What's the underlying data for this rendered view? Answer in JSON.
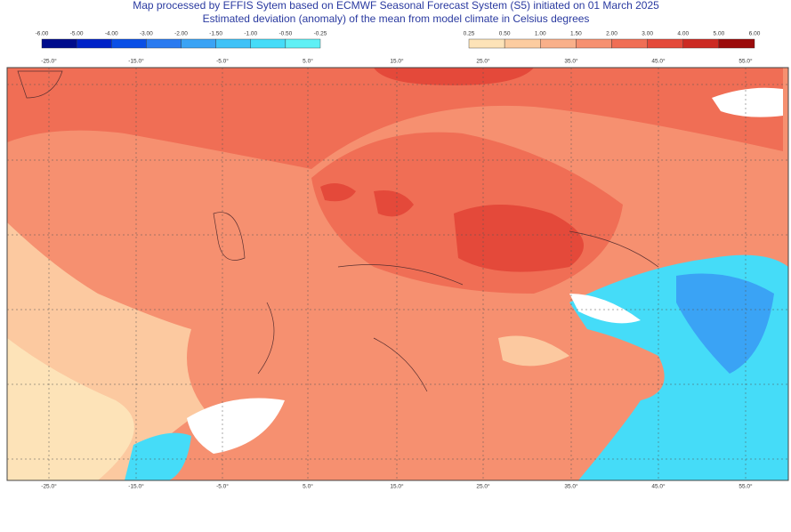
{
  "header": {
    "title": "Map processed by EFFIS Sytem based on ECMWF Seasonal Forecast System (S5) initiated on 01 March 2025",
    "subtitle": "Estimated deviation (anomaly) of the mean from model climate in Celsius degrees"
  },
  "legend": {
    "negative": {
      "labels": [
        "-6.00",
        "-5.00",
        "-4.00",
        "-3.00",
        "-2.00",
        "-1.50",
        "-1.00",
        "-0.50",
        "-0.25"
      ],
      "colors": [
        "#000c8c",
        "#0022c8",
        "#0a4fe6",
        "#2a7bf0",
        "#3aa3f5",
        "#3fc2f7",
        "#45dcf8",
        "#5ff0f5"
      ]
    },
    "positive": {
      "labels": [
        "0.25",
        "0.50",
        "1.00",
        "1.50",
        "2.00",
        "3.00",
        "4.00",
        "5.00",
        "6.00"
      ],
      "colors": [
        "#fde3b8",
        "#fcccA0",
        "#f9b08a",
        "#f69070",
        "#f06e55",
        "#e4493a",
        "#cc2a23",
        "#9b0b0b"
      ]
    }
  },
  "map": {
    "longitudes": [
      "-25.0°",
      "-15.0°",
      "-5.0°",
      "5.0°",
      "15.0°",
      "25.0°",
      "35.0°",
      "45.0°",
      "55.0°"
    ]
  }
}
